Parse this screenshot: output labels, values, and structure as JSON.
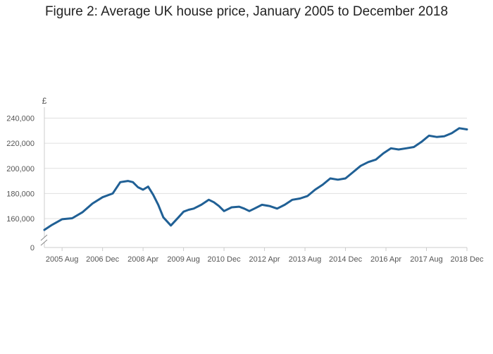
{
  "chart_data": {
    "type": "line",
    "title": "Figure 2: Average UK house price, January 2005 to December 2018",
    "ylabel": "£",
    "xlabel": "",
    "ylim": [
      150000,
      250000
    ],
    "y_axis_break": true,
    "y_ticks": [
      {
        "value": 0,
        "label": "0"
      },
      {
        "value": 160000,
        "label": "160,000"
      },
      {
        "value": 180000,
        "label": "180,000"
      },
      {
        "value": 200000,
        "label": "200,000"
      },
      {
        "value": 220000,
        "label": "220,000"
      },
      {
        "value": 240000,
        "label": "240,000"
      }
    ],
    "x_ticks": [
      {
        "date": "2005-08",
        "label": "2005 Aug"
      },
      {
        "date": "2006-12",
        "label": "2006 Dec"
      },
      {
        "date": "2008-04",
        "label": "2008 Apr"
      },
      {
        "date": "2009-08",
        "label": "2009 Aug"
      },
      {
        "date": "2010-12",
        "label": "2010 Dec"
      },
      {
        "date": "2012-04",
        "label": "2012 Apr"
      },
      {
        "date": "2013-08",
        "label": "2013 Aug"
      },
      {
        "date": "2014-12",
        "label": "2014 Dec"
      },
      {
        "date": "2016-04",
        "label": "2016 Apr"
      },
      {
        "date": "2017-08",
        "label": "2017 Aug"
      },
      {
        "date": "2018-12",
        "label": "2018 Dec"
      }
    ],
    "grid": true,
    "series": [
      {
        "color": "#206095",
        "x": [
          "2005-01",
          "2005-04",
          "2005-08",
          "2005-12",
          "2006-04",
          "2006-08",
          "2006-12",
          "2007-04",
          "2007-07",
          "2007-10",
          "2007-12",
          "2008-02",
          "2008-04",
          "2008-06",
          "2008-08",
          "2008-10",
          "2008-12",
          "2009-03",
          "2009-06",
          "2009-08",
          "2009-10",
          "2009-12",
          "2010-03",
          "2010-06",
          "2010-08",
          "2010-10",
          "2010-12",
          "2011-03",
          "2011-06",
          "2011-08",
          "2011-10",
          "2011-12",
          "2012-03",
          "2012-06",
          "2012-09",
          "2012-12",
          "2013-03",
          "2013-06",
          "2013-09",
          "2013-12",
          "2014-03",
          "2014-06",
          "2014-09",
          "2014-12",
          "2015-03",
          "2015-06",
          "2015-09",
          "2015-12",
          "2016-03",
          "2016-06",
          "2016-09",
          "2016-12",
          "2017-03",
          "2017-06",
          "2017-09",
          "2017-12",
          "2018-03",
          "2018-06",
          "2018-09",
          "2018-12"
        ],
        "y": [
          151000,
          155000,
          159500,
          160300,
          165000,
          172000,
          177000,
          180000,
          189000,
          190000,
          189000,
          185000,
          183000,
          185500,
          179000,
          171000,
          161000,
          154500,
          161000,
          165500,
          167000,
          168000,
          171000,
          175000,
          173000,
          170000,
          166000,
          169000,
          169500,
          168000,
          166000,
          168000,
          171000,
          170000,
          168000,
          171000,
          175000,
          176000,
          178000,
          183000,
          187000,
          192000,
          191000,
          192000,
          197000,
          202000,
          205000,
          207000,
          212000,
          216000,
          215000,
          216000,
          217000,
          221000,
          226000,
          225000,
          225500,
          228000,
          232000,
          231000
        ]
      }
    ]
  }
}
